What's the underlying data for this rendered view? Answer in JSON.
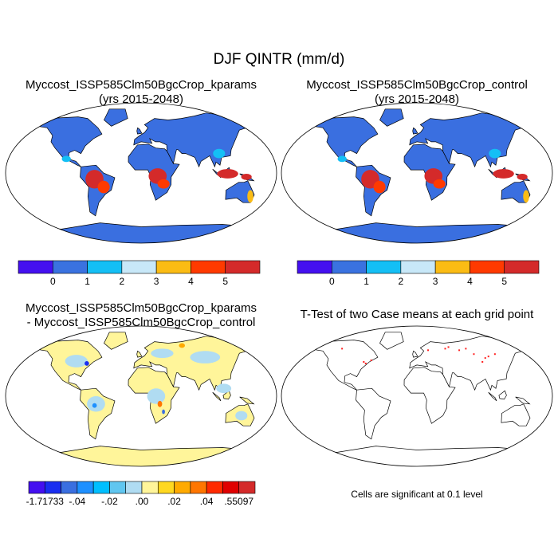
{
  "title": "DJF QINTR (mm/d)",
  "panels": {
    "top_left": {
      "title_line1": "Myccost_ISSP585Clm50BgcCrop_kparams",
      "title_line2": "(yrs 2015-2048)"
    },
    "top_right": {
      "title_line1": "Myccost_ISSP585Clm50BgcCrop_control",
      "title_line2": "(yrs 2015-2048)"
    },
    "bottom_left": {
      "title_line1": "Myccost_ISSP585Clm50BgcCrop_kparams",
      "title_line2": "- Myccost_ISSP585Clm50BgcCrop_control"
    },
    "bottom_right": {
      "title_line1": "T-Test of two Case means at each grid point",
      "footer": "Cells are significant at 0.1 level"
    }
  },
  "colorbars": {
    "case": {
      "colors": [
        "#4410f0",
        "#3a72e0",
        "#14bff5",
        "#c8e8f8",
        "#fbbc14",
        "#ff3a00",
        "#d42a2a"
      ],
      "labels": [
        "0",
        "1",
        "2",
        "3",
        "4",
        "5"
      ]
    },
    "diff": {
      "colors": [
        "#4410f0",
        "#1a2ef0",
        "#3a6fe0",
        "#1e90ff",
        "#00bfff",
        "#60c6f0",
        "#b0dcf2",
        "#fff59a",
        "#ffd820",
        "#ffaa00",
        "#ff7600",
        "#ff2a00",
        "#e00000",
        "#d42a2a"
      ],
      "labels": [
        "-1.71733",
        "-.04",
        "-.02",
        ".00",
        ".02",
        ".04",
        ".55097"
      ]
    }
  },
  "colors": {
    "land_case": "#3a6fe0",
    "land_diff": "#fff59a",
    "significant": "#ff2020"
  }
}
